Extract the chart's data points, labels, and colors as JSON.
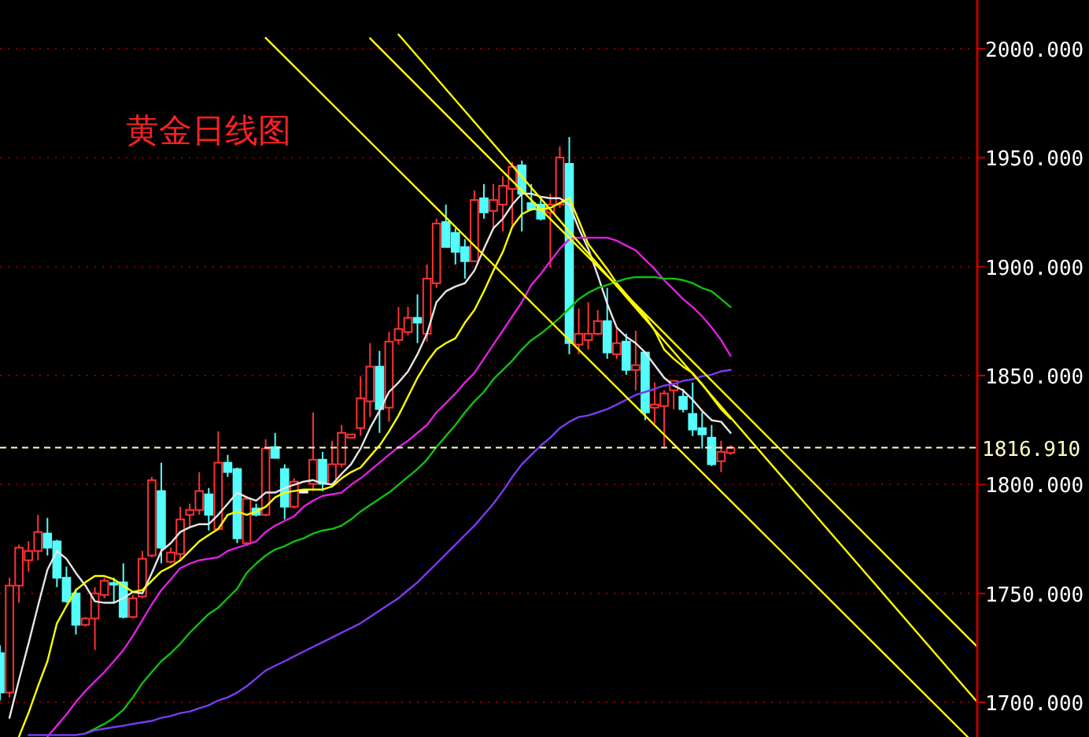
{
  "chart_data": {
    "type": "candlestick",
    "title": "黄金日线图",
    "categories": [
      null,
      null,
      null,
      null,
      null,
      null,
      null,
      null,
      null,
      null,
      null,
      null,
      null,
      null,
      null,
      null,
      null,
      null,
      null,
      null,
      null,
      null,
      null,
      null,
      null,
      null,
      null,
      null,
      null,
      null,
      null,
      null,
      null,
      null,
      null,
      null,
      null,
      null,
      null,
      null,
      null,
      null,
      null,
      null,
      null,
      null,
      null,
      null,
      null,
      null,
      null,
      null,
      null,
      null,
      null,
      null,
      null,
      null,
      null,
      null,
      null,
      null,
      null,
      null,
      null,
      null,
      null,
      null,
      null,
      null,
      null,
      null,
      null,
      null,
      null,
      null,
      null,
      null,
      null,
      null,
      null,
      null,
      null,
      null,
      null,
      null,
      null,
      null,
      null,
      null,
      null,
      null,
      null,
      null,
      null,
      null,
      null,
      null,
      null,
      null,
      null,
      null,
      null,
      null
    ],
    "ohlc": [
      [
        1722.6,
        1726.2,
        1700.9,
        1704.5
      ],
      [
        1704.5,
        1757.2,
        1702.3,
        1753.6
      ],
      [
        1753.6,
        1772.4,
        1745.7,
        1771.0
      ],
      [
        1765.2,
        1773.9,
        1760.1,
        1769.5
      ],
      [
        1769.5,
        1786.1,
        1765.2,
        1778.2
      ],
      [
        1777.5,
        1784.7,
        1767.4,
        1771.0
      ],
      [
        1773.9,
        1774.6,
        1752.9,
        1757.2
      ],
      [
        1757.2,
        1762.3,
        1745.7,
        1746.4
      ],
      [
        1750.0,
        1752.2,
        1731.2,
        1735.6
      ],
      [
        1735.6,
        1739.2,
        1734.8,
        1738.5
      ],
      [
        1738.5,
        1752.9,
        1724.0,
        1750.0
      ],
      [
        1749.3,
        1757.2,
        1747.8,
        1755.8
      ],
      [
        1754.8,
        1757.2,
        1745.7,
        1754.0
      ],
      [
        1755.1,
        1763.8,
        1738.5,
        1739.2
      ],
      [
        1739.2,
        1749.3,
        1738.5,
        1747.8
      ],
      [
        1748.6,
        1769.5,
        1747.8,
        1765.9
      ],
      [
        1767.4,
        1803.5,
        1766.6,
        1802.0
      ],
      [
        1797.0,
        1810.0,
        1763.8,
        1771.0
      ],
      [
        1764.5,
        1771.0,
        1763.8,
        1768.8
      ],
      [
        1768.1,
        1789.8,
        1764.5,
        1784.0
      ],
      [
        1786.1,
        1791.2,
        1780.4,
        1788.3
      ],
      [
        1788.3,
        1805.7,
        1786.1,
        1797.0
      ],
      [
        1795.5,
        1798.4,
        1778.9,
        1786.1
      ],
      [
        1779.6,
        1824.4,
        1778.9,
        1810.0
      ],
      [
        1810.0,
        1813.6,
        1803.5,
        1805.7
      ],
      [
        1807.1,
        1807.8,
        1773.1,
        1775.3
      ],
      [
        1773.1,
        1794.8,
        1771.7,
        1793.4
      ],
      [
        1789.0,
        1791.2,
        1785.4,
        1786.1
      ],
      [
        1786.1,
        1820.8,
        1785.4,
        1816.5
      ],
      [
        1817.2,
        1823.7,
        1812.2,
        1812.2
      ],
      [
        1807.1,
        1809.3,
        1784.0,
        1789.8
      ],
      [
        1789.8,
        1802.8,
        1789.0,
        1801.3
      ],
      [
        1797.0,
        1797.7,
        1796.3,
        1797.0
      ],
      [
        1800.3,
        1833.1,
        1797.0,
        1811.4
      ],
      [
        1811.4,
        1815.0,
        1797.0,
        1800.3
      ],
      [
        1800.3,
        1820.1,
        1800.3,
        1809.3
      ],
      [
        1809.3,
        1827.3,
        1807.8,
        1823.7
      ],
      [
        1821.5,
        1823.0,
        1821.5,
        1823.0
      ],
      [
        1825.9,
        1849.7,
        1822.3,
        1839.6
      ],
      [
        1838.2,
        1864.9,
        1831.0,
        1854.1
      ],
      [
        1854.1,
        1861.3,
        1823.7,
        1834.6
      ],
      [
        1835.3,
        1870.0,
        1828.8,
        1865.6
      ],
      [
        1866.3,
        1881.5,
        1864.2,
        1871.4
      ],
      [
        1870.0,
        1881.5,
        1868.5,
        1876.5
      ],
      [
        1876.5,
        1887.3,
        1864.9,
        1874.3
      ],
      [
        1869.2,
        1901.0,
        1865.6,
        1894.5
      ],
      [
        1892.4,
        1922.0,
        1890.2,
        1919.8
      ],
      [
        1920.5,
        1928.5,
        1909.0,
        1909.0
      ],
      [
        1915.5,
        1917.6,
        1901.0,
        1906.8
      ],
      [
        1909.0,
        1912.6,
        1894.5,
        1902.5
      ],
      [
        1902.5,
        1935.0,
        1902.5,
        1930.6
      ],
      [
        1931.4,
        1937.9,
        1922.0,
        1924.9
      ],
      [
        1925.6,
        1937.9,
        1917.6,
        1930.6
      ],
      [
        1928.5,
        1941.5,
        1916.2,
        1937.1
      ],
      [
        1935.7,
        1948.0,
        1919.1,
        1945.8
      ],
      [
        1946.5,
        1948.7,
        1916.2,
        1933.5
      ],
      [
        1929.2,
        1937.9,
        1925.6,
        1926.3
      ],
      [
        1928.5,
        1932.1,
        1921.2,
        1922.0
      ],
      [
        1924.9,
        1933.5,
        1899.6,
        1928.5
      ],
      [
        1928.5,
        1955.2,
        1927.0,
        1950.1
      ],
      [
        1947.2,
        1959.5,
        1859.8,
        1864.9
      ],
      [
        1864.2,
        1880.8,
        1859.8,
        1869.2
      ],
      [
        1866.3,
        1883.7,
        1862.0,
        1869.2
      ],
      [
        1869.2,
        1880.1,
        1868.5,
        1875.0
      ],
      [
        1875.0,
        1890.2,
        1857.7,
        1860.6
      ],
      [
        1859.8,
        1872.1,
        1857.7,
        1864.9
      ],
      [
        1865.6,
        1869.2,
        1850.4,
        1852.6
      ],
      [
        1852.6,
        1870.7,
        1843.2,
        1854.8
      ],
      [
        1860.6,
        1860.6,
        1829.5,
        1833.1
      ],
      [
        1835.3,
        1846.8,
        1828.1,
        1836.7
      ],
      [
        1836.0,
        1843.2,
        1816.5,
        1841.8
      ],
      [
        1843.2,
        1847.6,
        1834.6,
        1847.6
      ],
      [
        1840.3,
        1843.9,
        1833.1,
        1834.6
      ],
      [
        1832.4,
        1846.8,
        1822.3,
        1825.2
      ],
      [
        1825.9,
        1833.1,
        1816.5,
        1823.0
      ],
      [
        1821.5,
        1827.3,
        1808.5,
        1809.3
      ],
      [
        1810.7,
        1820.1,
        1805.7,
        1815.0
      ],
      [
        1814.5,
        1818.0,
        1813.6,
        1816.9
      ],
      null,
      null,
      null,
      null,
      null,
      null,
      null,
      null,
      null,
      null,
      null,
      null,
      null,
      null,
      null,
      null,
      null,
      null,
      null,
      null,
      null,
      null,
      null,
      null,
      null,
      null
    ],
    "colors": [
      "#54fcfc",
      "#ff3232",
      "#ff3232",
      "#ff3232",
      "#ff3232",
      "#54fcfc",
      "#54fcfc",
      "#54fcfc",
      "#54fcfc",
      "#ff3232",
      "#ff3232",
      "#ff3232",
      "#54fcfc",
      "#54fcfc",
      "#ff3232",
      "#ff3232",
      "#ff3232",
      "#54fcfc",
      "#ff3232",
      "#ff3232",
      "#ff3232",
      "#ff3232",
      "#54fcfc",
      "#ff3232",
      "#54fcfc",
      "#54fcfc",
      "#ff3232",
      "#54fcfc",
      "#ff3232",
      "#54fcfc",
      "#54fcfc",
      "#ff3232",
      "#ffffff",
      "#ff3232",
      "#54fcfc",
      "#ff3232",
      "#ff3232",
      "#ff3232",
      "#ff3232",
      "#ff3232",
      "#54fcfc",
      "#ff3232",
      "#ff3232",
      "#ff3232",
      "#54fcfc",
      "#ff3232",
      "#ff3232",
      "#54fcfc",
      "#54fcfc",
      "#54fcfc",
      "#ff3232",
      "#54fcfc",
      "#ff3232",
      "#ff3232",
      "#ff3232",
      "#54fcfc",
      "#54fcfc",
      "#54fcfc",
      "#ff3232",
      "#ff3232",
      "#54fcfc",
      "#ff3232",
      "#ff3232",
      "#ff3232",
      "#54fcfc",
      "#ff3232",
      "#54fcfc",
      "#ff3232",
      "#54fcfc",
      "#ff3232",
      "#ff3232",
      "#ff3232",
      "#54fcfc",
      "#54fcfc",
      "#54fcfc",
      "#54fcfc",
      "#ff3232",
      "#ff3232",
      null,
      null,
      null,
      null,
      null,
      null,
      null,
      null,
      null,
      null,
      null,
      null,
      null,
      null,
      null,
      null,
      null,
      null,
      null,
      null,
      null,
      null,
      null,
      null,
      null,
      null
    ],
    "series": [
      {
        "type": "line",
        "color": "#e6e6e6",
        "values": [
          null,
          1692.9,
          1710.3,
          1726.9,
          1744.2,
          1760.9,
          1769.5,
          1765.9,
          1759.4,
          1753.6,
          1746.4,
          1745.7,
          1745.7,
          1747.8,
          1750.7,
          1750.0,
          1759.4,
          1769.5,
          1773.1,
          1778.2,
          1780.4,
          1781.8,
          1781.8,
          1786.1,
          1791.2,
          1796.3,
          1794.1,
          1792.6,
          1796.3,
          1796.3,
          1798.4,
          1799.9,
          1801.3,
          1802.0,
          1800.6,
          1799.9,
          1804.9,
          1809.3,
          1816.5,
          1825.9,
          1833.8,
          1842.5,
          1846.8,
          1851.9,
          1859.8,
          1869.2,
          1883.7,
          1888.7,
          1890.9,
          1892.4,
          1898.2,
          1908.2,
          1917.6,
          1922.0,
          1928.5,
          1933.5,
          1933.5,
          1932.1,
          1931.4,
          1931.4,
          1928.5,
          1917.6,
          1908.2,
          1896.0,
          1883.0,
          1872.1,
          1867.8,
          1864.9,
          1860.6,
          1854.8,
          1849.0,
          1845.4,
          1843.2,
          1838.9,
          1833.8,
          1829.5,
          1828.8,
          1823.7,
          null,
          null,
          null,
          null,
          null,
          null,
          null,
          null,
          null,
          null,
          null,
          null,
          null,
          null,
          null,
          null,
          null,
          null,
          null,
          null,
          null,
          null,
          null,
          null,
          null,
          null
        ]
      },
      {
        "type": "line",
        "color": "#ffff00",
        "values": [
          null,
          null,
          1684.3,
          1695.1,
          1707.4,
          1718.9,
          1736.3,
          1744.2,
          1751.5,
          1755.1,
          1758.0,
          1758.0,
          1756.5,
          1753.6,
          1750.7,
          1751.5,
          1755.8,
          1760.1,
          1762.3,
          1765.2,
          1769.5,
          1773.9,
          1776.8,
          1779.6,
          1786.1,
          1787.6,
          1786.1,
          1787.6,
          1789.8,
          1794.1,
          1796.3,
          1797.0,
          1797.7,
          1797.7,
          1797.7,
          1799.1,
          1802.8,
          1805.7,
          1807.8,
          1812.9,
          1817.9,
          1824.4,
          1831.7,
          1840.3,
          1849.0,
          1856.2,
          1862.0,
          1864.9,
          1867.1,
          1874.3,
          1880.1,
          1888.7,
          1898.2,
          1906.8,
          1918.4,
          1924.1,
          1926.3,
          1926.3,
          1927.0,
          1929.2,
          1931.4,
          1921.2,
          1910.4,
          1904.6,
          1898.9,
          1892.4,
          1887.3,
          1882.2,
          1877.2,
          1870.7,
          1862.0,
          1857.7,
          1854.1,
          1851.2,
          1846.1,
          1840.3,
          1834.6,
          1830.2,
          null,
          null,
          null,
          null,
          null,
          null,
          null,
          null,
          null,
          null,
          null,
          null,
          null,
          null,
          null,
          null,
          null,
          null,
          null,
          null,
          null,
          null,
          null,
          null,
          null,
          null
        ]
      },
      {
        "type": "line",
        "color": "#e020e0",
        "values": [
          null,
          null,
          null,
          null,
          null,
          1684.3,
          1689.3,
          1694.4,
          1700.2,
          1705.2,
          1709.6,
          1713.9,
          1718.9,
          1724.0,
          1730.5,
          1737.7,
          1745.0,
          1751.5,
          1756.5,
          1761.6,
          1763.7,
          1765.2,
          1765.9,
          1766.6,
          1769.5,
          1771.0,
          1772.4,
          1773.9,
          1778.2,
          1781.1,
          1783.3,
          1785.4,
          1789.8,
          1792.6,
          1794.8,
          1795.5,
          1796.3,
          1799.9,
          1802.8,
          1806.4,
          1810.0,
          1813.6,
          1817.2,
          1820.1,
          1823.7,
          1827.3,
          1833.1,
          1837.4,
          1841.8,
          1846.8,
          1851.2,
          1857.7,
          1864.2,
          1870.7,
          1877.2,
          1883.7,
          1891.6,
          1896.7,
          1902.5,
          1908.2,
          1912.6,
          1913.3,
          1913.3,
          1913.3,
          1913.3,
          1911.9,
          1909.7,
          1907.5,
          1903.2,
          1898.9,
          1893.8,
          1889.5,
          1885.1,
          1881.5,
          1877.2,
          1872.1,
          1866.3,
          1859.1,
          null,
          null,
          null,
          null,
          null,
          null,
          null,
          null,
          null,
          null,
          null,
          null,
          null,
          null,
          null,
          null,
          null,
          null,
          null,
          null,
          null,
          null,
          null,
          null,
          null,
          null
        ]
      },
      {
        "type": "line",
        "color": "#10c010",
        "values": [
          null,
          null,
          null,
          null,
          null,
          null,
          null,
          null,
          null,
          1685.7,
          1687.9,
          1690.1,
          1692.9,
          1696.6,
          1702.3,
          1708.8,
          1713.9,
          1718.9,
          1722.6,
          1726.9,
          1732.0,
          1736.3,
          1740.6,
          1743.5,
          1747.8,
          1752.2,
          1759.4,
          1763.7,
          1767.4,
          1770.2,
          1771.7,
          1773.9,
          1775.3,
          1777.5,
          1778.9,
          1779.6,
          1781.1,
          1784.0,
          1787.6,
          1790.5,
          1793.4,
          1796.3,
          1799.9,
          1803.5,
          1807.1,
          1811.4,
          1817.2,
          1822.3,
          1827.3,
          1833.1,
          1838.2,
          1842.5,
          1848.3,
          1852.6,
          1856.9,
          1862.0,
          1866.3,
          1869.2,
          1872.8,
          1876.5,
          1880.8,
          1885.1,
          1888.0,
          1890.2,
          1891.6,
          1893.1,
          1894.5,
          1895.2,
          1895.2,
          1895.2,
          1894.5,
          1894.5,
          1893.8,
          1892.4,
          1890.2,
          1888.7,
          1885.1,
          1881.5,
          null,
          null,
          null,
          null,
          null,
          null,
          null,
          null,
          null,
          null,
          null,
          null,
          null,
          null,
          null,
          null,
          null,
          null,
          null,
          null,
          null,
          null,
          null,
          null,
          null,
          null
        ]
      },
      {
        "type": "line",
        "color": "#7a3cf0",
        "values": [
          null,
          null,
          null,
          1685.0,
          1685.0,
          1685.0,
          1685.0,
          1685.0,
          1685.0,
          1685.7,
          1687.2,
          1687.9,
          1688.6,
          1689.3,
          1690.1,
          1690.8,
          1691.5,
          1692.9,
          1693.7,
          1695.1,
          1695.8,
          1697.3,
          1698.7,
          1700.9,
          1702.3,
          1704.5,
          1707.4,
          1711.0,
          1714.6,
          1716.8,
          1718.9,
          1721.1,
          1723.3,
          1725.5,
          1727.6,
          1729.8,
          1732.0,
          1734.1,
          1736.3,
          1739.2,
          1742.1,
          1745.0,
          1747.8,
          1751.5,
          1755.1,
          1759.4,
          1763.7,
          1768.1,
          1772.4,
          1776.8,
          1781.1,
          1786.1,
          1791.2,
          1797.0,
          1803.5,
          1809.3,
          1813.6,
          1817.9,
          1821.5,
          1825.9,
          1828.8,
          1831.0,
          1831.7,
          1833.1,
          1834.6,
          1836.7,
          1838.9,
          1841.1,
          1842.5,
          1843.9,
          1845.4,
          1846.1,
          1847.6,
          1848.3,
          1849.7,
          1850.4,
          1851.9,
          1852.6,
          null,
          null,
          null,
          null,
          null,
          null,
          null,
          null,
          null,
          null,
          null,
          null,
          null,
          null,
          null,
          null,
          null,
          null,
          null,
          null,
          null,
          null,
          null,
          null,
          null,
          null
        ]
      },
      {
        "type": "line",
        "color": "#ffff00",
        "values": [
          null,
          null,
          null,
          null,
          null,
          null,
          null,
          null,
          null,
          null,
          null,
          null,
          null,
          null,
          null,
          null,
          null,
          null,
          null,
          null,
          null,
          null,
          null,
          null,
          null,
          null,
          null,
          null,
          null,
          null,
          null,
          null,
          null,
          null,
          null,
          null,
          null,
          null,
          null,
          2004.8,
          null,
          null,
          null,
          null,
          null,
          null,
          null,
          null,
          null,
          null,
          null,
          null,
          null,
          null,
          null,
          null,
          null,
          null,
          null,
          null,
          null,
          null,
          null,
          null,
          null,
          null,
          null,
          null,
          null,
          null,
          null,
          null,
          null,
          null,
          null,
          null,
          null,
          null,
          null,
          null,
          null,
          null,
          null,
          null,
          null,
          null,
          null,
          null,
          null,
          null,
          null,
          null,
          null,
          null,
          null,
          null,
          null,
          null,
          null,
          null,
          null,
          null,
          null,
          1725.5
        ]
      },
      {
        "type": "line",
        "color": "#ffff00",
        "values": [
          null,
          null,
          null,
          null,
          null,
          null,
          null,
          null,
          null,
          null,
          null,
          null,
          null,
          null,
          null,
          null,
          null,
          null,
          null,
          null,
          null,
          null,
          null,
          null,
          null,
          null,
          null,
          null,
          null,
          null,
          null,
          null,
          null,
          null,
          null,
          null,
          null,
          null,
          null,
          null,
          null,
          null,
          2006.6,
          null,
          null,
          null,
          null,
          null,
          null,
          null,
          null,
          null,
          null,
          null,
          null,
          null,
          null,
          null,
          null,
          null,
          null,
          null,
          null,
          null,
          null,
          null,
          null,
          null,
          null,
          null,
          null,
          null,
          null,
          null,
          null,
          null,
          null,
          null,
          null,
          null,
          null,
          null,
          null,
          null,
          null,
          null,
          null,
          null,
          null,
          null,
          null,
          null,
          null,
          null,
          null,
          null,
          null,
          null,
          null,
          null,
          null,
          null,
          null,
          1700.2
        ]
      },
      {
        "type": "line",
        "color": "#ffff00",
        "values": [
          null,
          null,
          null,
          null,
          null,
          null,
          null,
          null,
          null,
          null,
          null,
          null,
          null,
          null,
          null,
          null,
          null,
          null,
          null,
          null,
          null,
          null,
          null,
          null,
          null,
          null,
          null,
          null,
          2005.0,
          null,
          null,
          null,
          null,
          null,
          null,
          null,
          null,
          null,
          null,
          null,
          null,
          null,
          null,
          null,
          null,
          null,
          null,
          null,
          null,
          null,
          null,
          null,
          null,
          null,
          null,
          null,
          null,
          null,
          null,
          null,
          null,
          null,
          null,
          null,
          null,
          null,
          null,
          null,
          null,
          null,
          null,
          null,
          null,
          null,
          null,
          null,
          null,
          null,
          null,
          null,
          null,
          null,
          null,
          null,
          null,
          null,
          null,
          null,
          null,
          null,
          null,
          null,
          null,
          null,
          null,
          null,
          null,
          null,
          null,
          null,
          null,
          null,
          1684.1,
          null
        ]
      }
    ],
    "ylim": [
      1684.1,
      2022.4
    ],
    "yticks": [
      {
        "value": 1700,
        "label": "1700.000"
      },
      {
        "value": 1750,
        "label": "1750.000"
      },
      {
        "value": 1800,
        "label": "1800.000"
      },
      {
        "value": 1850,
        "label": "1850.000"
      },
      {
        "value": 1900,
        "label": "1900.000"
      },
      {
        "value": 1950,
        "label": "1950.000"
      },
      {
        "value": 2000,
        "label": "2000.000"
      }
    ],
    "grid": "y",
    "ref_lines": [
      {
        "axis": "y",
        "value": 1816.91,
        "label": "1816.910",
        "color": "#ffffc0",
        "line_style": "dashed"
      }
    ]
  }
}
